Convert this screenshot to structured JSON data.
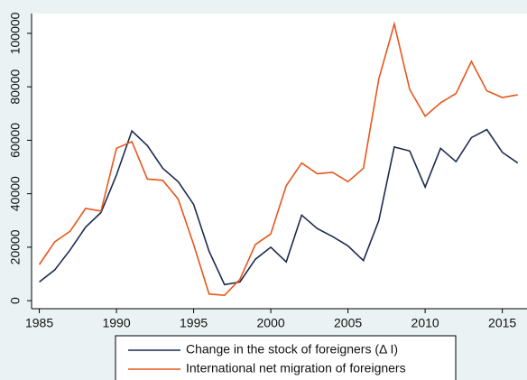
{
  "chart_data": {
    "type": "line",
    "x": [
      1985,
      1986,
      1987,
      1988,
      1989,
      1990,
      1991,
      1992,
      1993,
      1994,
      1995,
      1996,
      1997,
      1998,
      1999,
      2000,
      2001,
      2002,
      2003,
      2004,
      2005,
      2006,
      2007,
      2008,
      2009,
      2010,
      2011,
      2012,
      2013,
      2014,
      2015,
      2016
    ],
    "series": [
      {
        "name": "Change in the stock of foreigners  (Δ I)",
        "color": "#1c2b4f",
        "values": [
          7000,
          11500,
          19000,
          27500,
          33000,
          47000,
          63500,
          58000,
          49500,
          44500,
          36000,
          18500,
          6000,
          7000,
          15500,
          20000,
          14500,
          32000,
          27000,
          24000,
          20500,
          15000,
          30000,
          57500,
          56000,
          42500,
          57000,
          52000,
          61000,
          64000,
          55500,
          51500
        ]
      },
      {
        "name": "International net migration of foreigners",
        "color": "#e8561c",
        "values": [
          13500,
          22000,
          26000,
          34500,
          33500,
          57000,
          59500,
          45500,
          45000,
          38000,
          21000,
          2500,
          2000,
          8000,
          21000,
          25000,
          43000,
          51500,
          47500,
          48000,
          44500,
          49500,
          83000,
          103500,
          79000,
          69000,
          74000,
          77500,
          89500,
          78500,
          76000,
          77000
        ]
      }
    ],
    "xlim": [
      1984.5,
      2016.6
    ],
    "xticks": [
      1985,
      1990,
      1995,
      2000,
      2005,
      2010,
      2015
    ],
    "ylim": [
      -3000,
      107400
    ],
    "yticks": [
      0,
      20000,
      40000,
      60000,
      80000,
      100000
    ],
    "grid": false
  }
}
